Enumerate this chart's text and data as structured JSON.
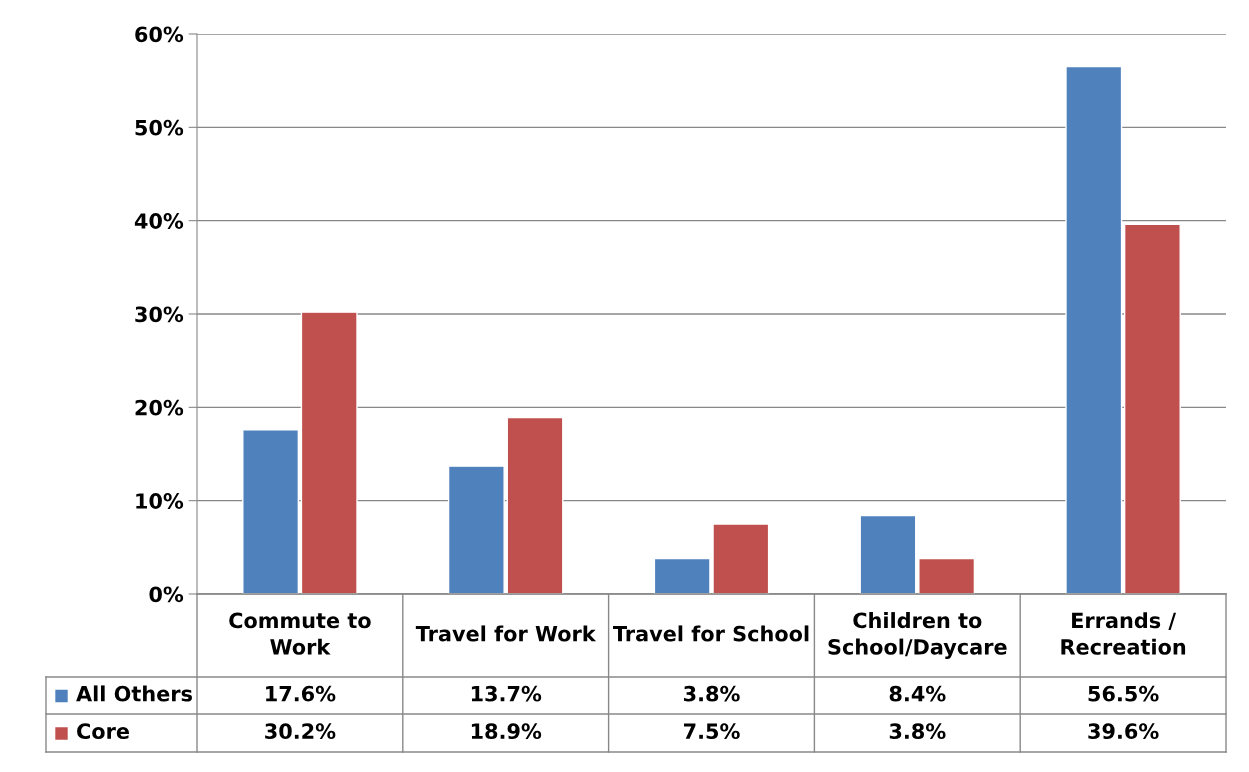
{
  "chart_data": {
    "type": "bar",
    "categories": [
      "Commute to\nWork",
      "Travel for Work",
      "Travel for School",
      "Children to\nSchool/Daycare",
      "Errands /\nRecreation"
    ],
    "series": [
      {
        "name": "All Others",
        "color": "#4f81bd",
        "values": [
          17.6,
          13.7,
          3.8,
          8.4,
          56.5
        ],
        "value_labels": [
          "17.6%",
          "13.7%",
          "3.8%",
          "8.4%",
          "56.5%"
        ]
      },
      {
        "name": "Core",
        "color": "#c0504d",
        "values": [
          30.2,
          18.9,
          7.5,
          3.8,
          39.6
        ],
        "value_labels": [
          "30.2%",
          "18.9%",
          "7.5%",
          "3.8%",
          "39.6%"
        ]
      }
    ],
    "ylim": [
      0,
      60
    ],
    "yticks": [
      {
        "value": 0,
        "label": "0%"
      },
      {
        "value": 10,
        "label": "10%"
      },
      {
        "value": 20,
        "label": "20%"
      },
      {
        "value": 30,
        "label": "30%"
      },
      {
        "value": 40,
        "label": "40%"
      },
      {
        "value": 50,
        "label": "50%"
      },
      {
        "value": 60,
        "label": "60%"
      }
    ],
    "grid": "y",
    "legend": "bottom left"
  }
}
